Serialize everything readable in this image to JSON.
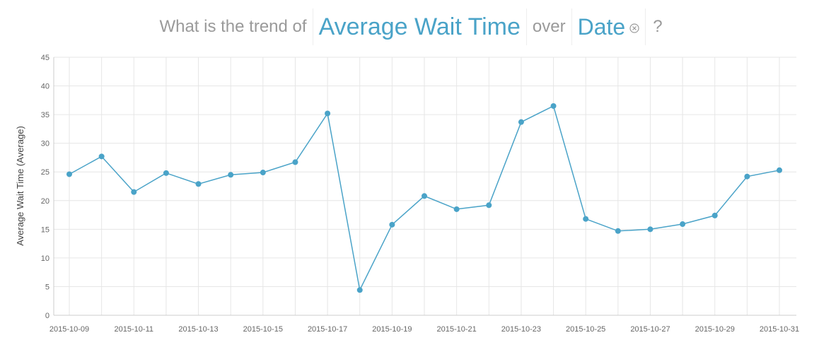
{
  "question": {
    "prefix": "What is the trend of",
    "measure": "Average Wait Time",
    "connector": "over",
    "dimension": "Date",
    "suffix": "?",
    "close_icon": "close-circle-icon"
  },
  "colors": {
    "accent": "#4aa3c8",
    "question_text": "#9a9a9a",
    "grid": "#e6e6e6"
  },
  "chart_data": {
    "type": "line",
    "title": "",
    "xlabel": "",
    "ylabel": "Average Wait Time (Average)",
    "ylim": [
      0,
      45
    ],
    "yticks": [
      0,
      5,
      10,
      15,
      20,
      25,
      30,
      35,
      40,
      45
    ],
    "grid": true,
    "x": [
      "2015-10-09",
      "2015-10-10",
      "2015-10-11",
      "2015-10-12",
      "2015-10-13",
      "2015-10-14",
      "2015-10-15",
      "2015-10-16",
      "2015-10-17",
      "2015-10-18",
      "2015-10-19",
      "2015-10-20",
      "2015-10-21",
      "2015-10-22",
      "2015-10-23",
      "2015-10-24",
      "2015-10-25",
      "2015-10-26",
      "2015-10-27",
      "2015-10-28",
      "2015-10-29",
      "2015-10-30",
      "2015-10-31"
    ],
    "xtick_labels": [
      "2015-10-09",
      "2015-10-11",
      "2015-10-13",
      "2015-10-15",
      "2015-10-17",
      "2015-10-19",
      "2015-10-21",
      "2015-10-23",
      "2015-10-25",
      "2015-10-27",
      "2015-10-29",
      "2015-10-31"
    ],
    "series": [
      {
        "values": [
          24.6,
          27.7,
          21.5,
          24.8,
          22.9,
          24.5,
          24.9,
          26.7,
          35.2,
          4.4,
          15.8,
          20.8,
          18.5,
          19.2,
          33.7,
          36.5,
          16.8,
          14.7,
          15.0,
          15.9,
          17.4,
          24.2,
          25.3
        ]
      }
    ]
  }
}
